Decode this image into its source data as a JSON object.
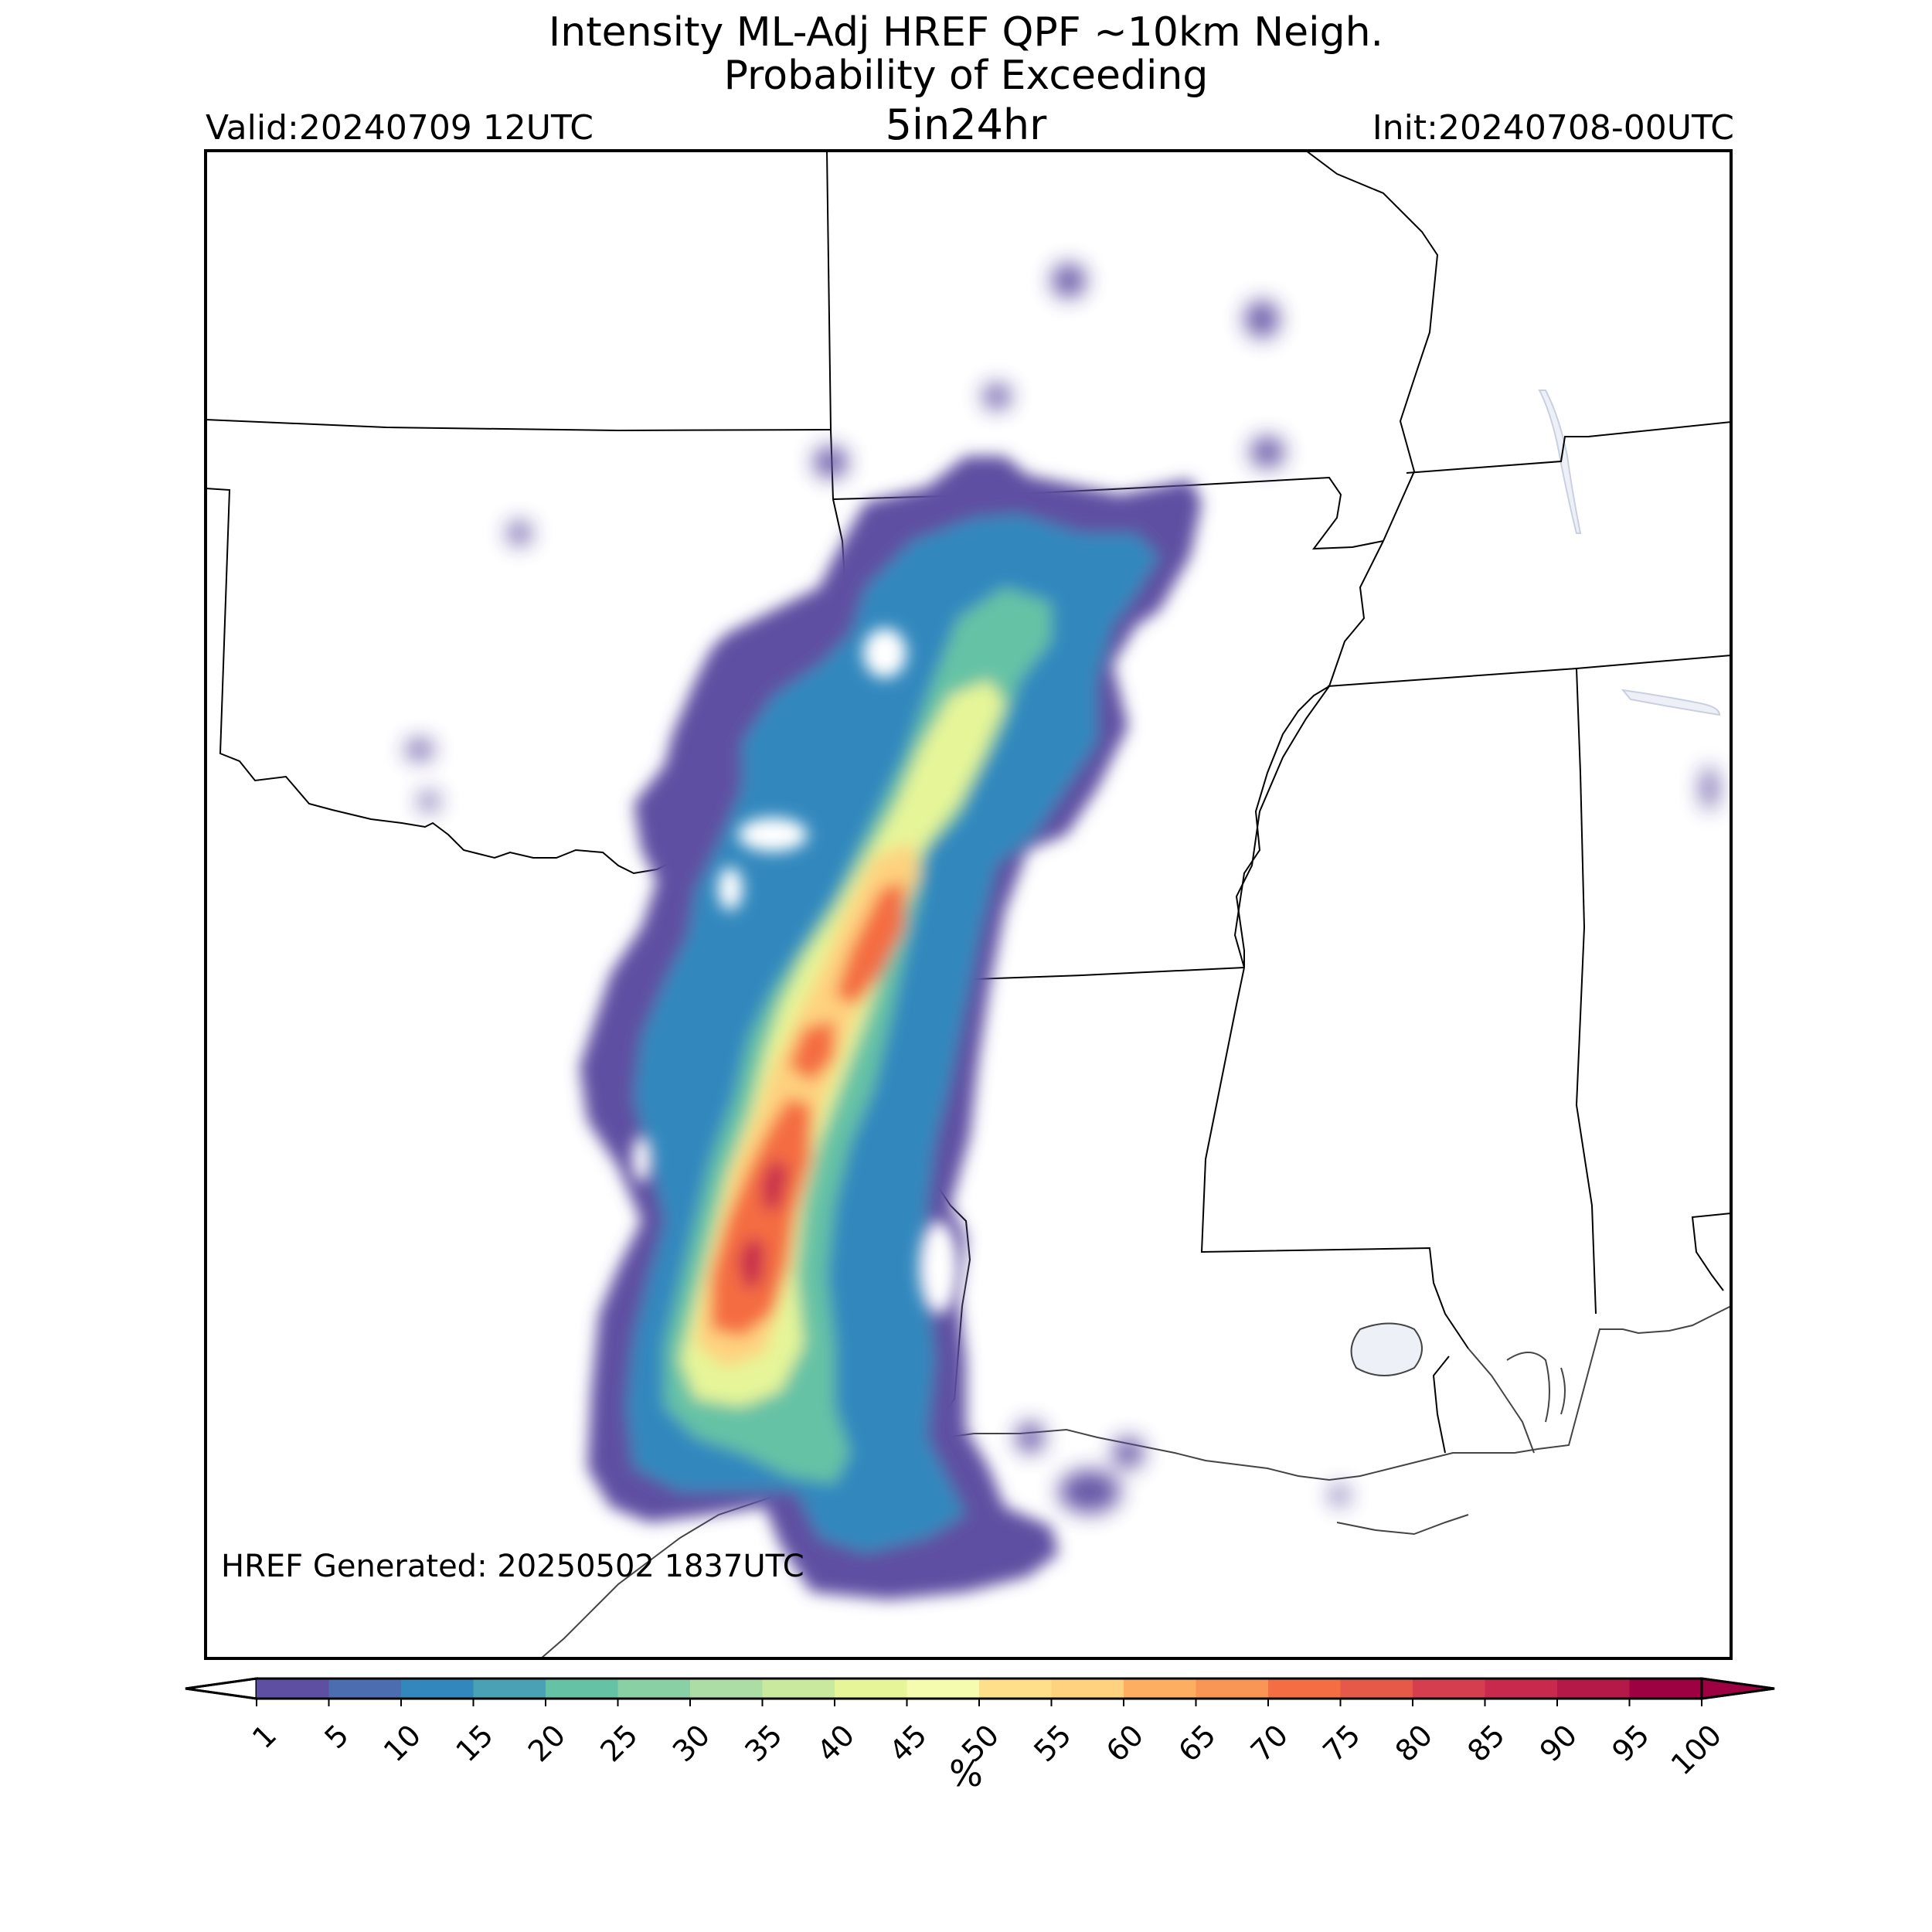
{
  "header": {
    "title_line1": "Intensity ML-Adj HREF QPF ~10km Neigh.",
    "title_line2": "Probability of Exceeding",
    "subtitle": "5in24hr",
    "valid": "Valid:20240709 12UTC",
    "init": "Init:20240708-00UTC"
  },
  "map": {
    "generated_note": "HREF Generated: 20250502 1837UTC",
    "field": "probability of exceeding 5 in / 24 hr",
    "units": "%",
    "colors": {
      "state_border": "#000000",
      "coastline": "#444444",
      "water": "#eef0f8"
    }
  },
  "colorbar": {
    "label": "%",
    "ticks": [
      "1",
      "5",
      "10",
      "15",
      "20",
      "25",
      "30",
      "35",
      "40",
      "45",
      "50",
      "55",
      "60",
      "65",
      "70",
      "75",
      "80",
      "85",
      "90",
      "95",
      "100"
    ],
    "colors": [
      "#5e4fa2",
      "#4c6eb0",
      "#3288bd",
      "#4aa0b4",
      "#66c2a5",
      "#89d0a5",
      "#abdda4",
      "#c9e99f",
      "#e6f598",
      "#f5fbaf",
      "#fee08b",
      "#fed27f",
      "#fdae61",
      "#f99555",
      "#f46d43",
      "#e65848",
      "#d53e4f",
      "#c72a4d",
      "#b41947",
      "#9e0142"
    ],
    "under_color": "#ffffff",
    "over_color": "#9e0142"
  }
}
